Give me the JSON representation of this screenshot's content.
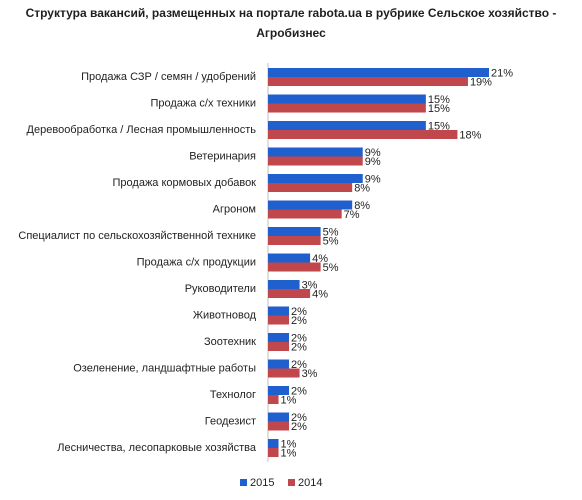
{
  "chart_data": {
    "type": "bar",
    "orientation": "horizontal",
    "title_line1": "Структура вакансий, размещенных на портале rabota.ua в рубрике Сельское хозяйство -",
    "title_line2": "Агробизнес",
    "categories": [
      "Продажа СЗР / семян / удобрений",
      "Продажа с/х техники",
      "Деревообработка / Лесная промышленность",
      "Ветеринария",
      "Продажа кормовых добавок",
      "Агроном",
      "Специалист по сельскохозяйственной технике",
      "Продажа с/х продукции",
      "Руководители",
      "Животновод",
      "Зоотехник",
      "Озеленение, ландшафтные работы",
      "Технолог",
      "Геодезист",
      "Лесничества, лесопарковые хозяйства"
    ],
    "series": [
      {
        "name": "2015",
        "color": "#1f5fce",
        "values": [
          21,
          15,
          15,
          9,
          9,
          8,
          5,
          4,
          3,
          2,
          2,
          2,
          2,
          2,
          1
        ],
        "labels": [
          "21%",
          "15%",
          "15%",
          "9%",
          "9%",
          "8%",
          "5%",
          "4%",
          "3%",
          "2%",
          "2%",
          "2%",
          "2%",
          "2%",
          "1%"
        ]
      },
      {
        "name": "2014",
        "color": "#c0474b",
        "values": [
          19,
          15,
          18,
          9,
          8,
          7,
          5,
          5,
          4,
          2,
          2,
          3,
          1,
          2,
          1
        ],
        "labels": [
          "19%",
          "15%",
          "18%",
          "9%",
          "8%",
          "7%",
          "5%",
          "5%",
          "4%",
          "2%",
          "2%",
          "3%",
          "1%",
          "2%",
          "1%"
        ]
      }
    ],
    "xlim": [
      0,
      21
    ],
    "grid": false,
    "legend_position": "bottom"
  }
}
